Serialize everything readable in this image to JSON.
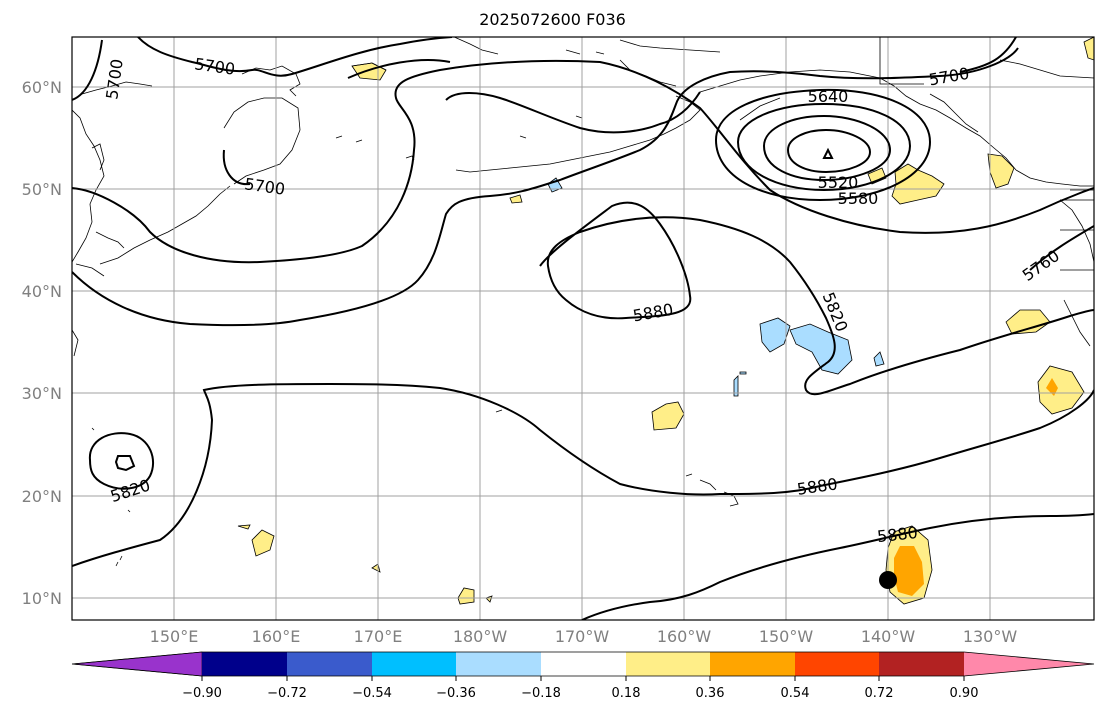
{
  "title": "2025072600 F036",
  "map": {
    "lat_labels": [
      "60°N",
      "50°N",
      "40°N",
      "30°N",
      "20°N",
      "10°N"
    ],
    "lon_labels": [
      "150°E",
      "160°E",
      "170°E",
      "180°W",
      "170°W",
      "160°W",
      "150°W",
      "140°W",
      "130°W"
    ],
    "contour_labels": [
      "5700",
      "5700",
      "5700",
      "5700",
      "5640",
      "5520",
      "5580",
      "5760",
      "5820",
      "5880",
      "5880",
      "5880",
      "5820"
    ],
    "colors": {
      "frame": "#000000",
      "grid": "#a0a0a0",
      "contour": "#000000",
      "coast": "#000000",
      "positive_light": "#ffee88",
      "positive_mid": "#ffa500",
      "negative_light": "#aaddff",
      "marker": "#000000"
    }
  },
  "colorbar": {
    "ticks": [
      "−0.90",
      "−0.72",
      "−0.54",
      "−0.36",
      "−0.18",
      "0.18",
      "0.36",
      "0.54",
      "0.72",
      "0.90"
    ],
    "colors": [
      "#9933cc",
      "#00008b",
      "#3a5bcc",
      "#00bfff",
      "#aaddff",
      "#ffffff",
      "#ffee88",
      "#ffa500",
      "#ff4500",
      "#b22222",
      "#ff88aa"
    ]
  }
}
